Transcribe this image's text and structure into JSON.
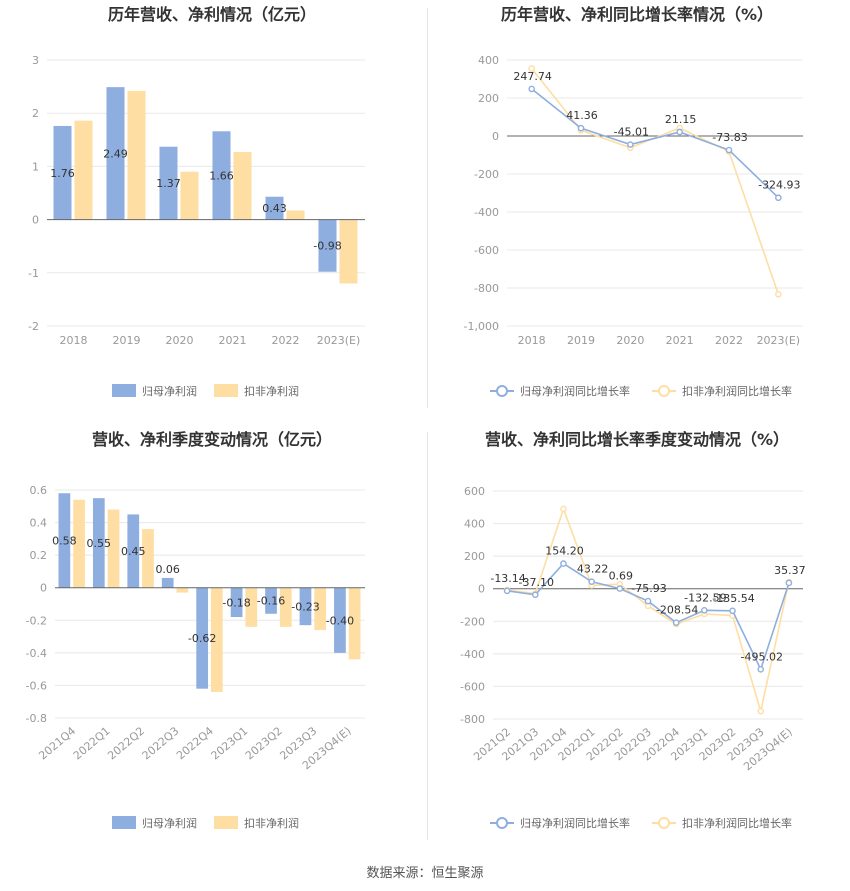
{
  "source": "数据来源：恒生聚源",
  "colors": {
    "profit": "#8eaedf",
    "deducted": "#fedea3",
    "grid": "#e8e8e8",
    "axis": "#666666"
  },
  "chart_data": [
    {
      "id": "annual-bar",
      "type": "bar",
      "title": "历年营收、净利情况（亿元）",
      "categories": [
        "2018",
        "2019",
        "2020",
        "2021",
        "2022",
        "2023(E)"
      ],
      "ylim": [
        -2,
        3
      ],
      "yticks": [
        -2,
        -1,
        0,
        1,
        2,
        3
      ],
      "grid": true,
      "legend_position": "bottom",
      "series": [
        {
          "name": "归母净利润",
          "values": [
            1.76,
            2.49,
            1.37,
            1.66,
            0.43,
            -0.98
          ],
          "labels": [
            "1.76",
            "2.49",
            "1.37",
            "1.66",
            "0.43",
            "-0.98"
          ]
        },
        {
          "name": "扣非净利润",
          "values": [
            1.86,
            2.42,
            0.9,
            1.27,
            0.17,
            -1.2
          ]
        }
      ]
    },
    {
      "id": "annual-line",
      "type": "line",
      "title": "历年营收、净利同比增长率情况（%）",
      "categories": [
        "2018",
        "2019",
        "2020",
        "2021",
        "2022",
        "2023(E)"
      ],
      "ylim": [
        -1000,
        400
      ],
      "yticks": [
        -1000,
        -800,
        -600,
        -400,
        -200,
        0,
        200,
        400
      ],
      "ytick_labels": [
        "-1,000",
        "-800",
        "-600",
        "-400",
        "-200",
        "0",
        "200",
        "400"
      ],
      "grid": true,
      "legend_position": "bottom",
      "series": [
        {
          "name": "归母净利润同比增长率",
          "values": [
            247.74,
            41.36,
            -45.01,
            21.15,
            -73.83,
            -324.93
          ],
          "labels": [
            "247.74",
            "41.36",
            "-45.01",
            "21.15",
            "-73.83",
            "-324.93"
          ]
        },
        {
          "name": "扣非净利润同比增长率",
          "values": [
            355,
            30,
            -62,
            42,
            -82,
            -833
          ]
        }
      ]
    },
    {
      "id": "quarter-bar",
      "type": "bar",
      "title": "营收、净利季度变动情况（亿元）",
      "categories": [
        "2021Q4",
        "2022Q1",
        "2022Q2",
        "2022Q3",
        "2022Q4",
        "2023Q1",
        "2023Q2",
        "2023Q3",
        "2023Q4(E)"
      ],
      "ylim": [
        -0.8,
        0.6
      ],
      "yticks": [
        -0.8,
        -0.6,
        -0.4,
        -0.2,
        0,
        0.2,
        0.4,
        0.6
      ],
      "grid": true,
      "legend_position": "bottom",
      "series": [
        {
          "name": "归母净利润",
          "values": [
            0.58,
            0.55,
            0.45,
            0.06,
            -0.62,
            -0.18,
            -0.16,
            -0.23,
            -0.4
          ],
          "labels": [
            "0.58",
            "0.55",
            "0.45",
            "0.06",
            "-0.62",
            "-0.18",
            "-0.16",
            "-0.23",
            "-0.40"
          ]
        },
        {
          "name": "扣非净利润",
          "values": [
            0.54,
            0.48,
            0.36,
            -0.03,
            -0.64,
            -0.24,
            -0.24,
            -0.26,
            -0.44
          ]
        }
      ]
    },
    {
      "id": "quarter-line",
      "type": "line",
      "title": "营收、净利同比增长率季度变动情况（%）",
      "categories": [
        "2021Q2",
        "2021Q3",
        "2021Q4",
        "2022Q1",
        "2022Q2",
        "2022Q3",
        "2022Q4",
        "2023Q1",
        "2023Q2",
        "2023Q3",
        "2023Q4(E)"
      ],
      "ylim": [
        -800,
        600
      ],
      "yticks": [
        -800,
        -600,
        -400,
        -200,
        0,
        200,
        400,
        600
      ],
      "grid": true,
      "legend_position": "bottom",
      "series": [
        {
          "name": "归母净利润同比增长率",
          "values": [
            -13.14,
            -37.1,
            154.2,
            43.22,
            0.69,
            -75.93,
            -208.54,
            -132.59,
            -135.54,
            -495.02,
            35.37
          ],
          "labels": [
            "-13.14",
            "-37.10",
            "154.20",
            "43.22",
            "0.69",
            "-75.93",
            "-208.54",
            "-132.59",
            "-135.54",
            "-495.02",
            "35.37"
          ]
        },
        {
          "name": "扣非净利润同比增长率",
          "values": [
            -8,
            -30,
            490,
            20,
            28,
            -105,
            -218,
            -155,
            -165,
            -752,
            42
          ]
        }
      ]
    }
  ]
}
